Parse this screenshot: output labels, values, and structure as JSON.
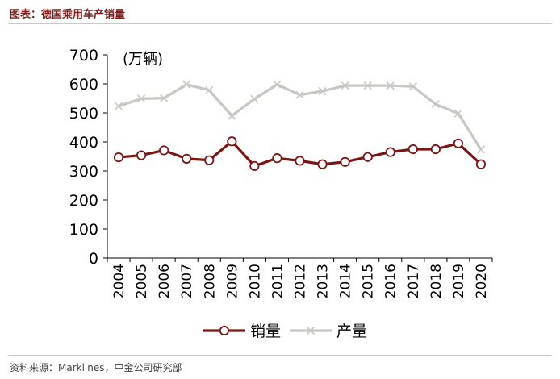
{
  "header": {
    "title": "图表：德国乘用车产销量"
  },
  "footer": {
    "source": "资料来源：Marklines，中金公司研究部"
  },
  "colors": {
    "sales": "#7b1515",
    "production": "#c6c8c3",
    "axis": "#000000"
  },
  "chart_data": {
    "type": "line",
    "title": "",
    "xlabel": "",
    "ylabel": "(万辆)",
    "ylim": [
      0,
      700
    ],
    "yticks": [
      0,
      100,
      200,
      300,
      400,
      500,
      600,
      700
    ],
    "categories": [
      "2004",
      "2005",
      "2006",
      "2007",
      "2008",
      "2009",
      "2010",
      "2011",
      "2012",
      "2013",
      "2014",
      "2015",
      "2016",
      "2017",
      "2018",
      "2019",
      "2020"
    ],
    "grid": false,
    "legend_position": "bottom",
    "series": [
      {
        "name": "销量",
        "marker": "circle",
        "values": [
          347,
          354,
          371,
          342,
          337,
          402,
          317,
          344,
          335,
          323,
          331,
          348,
          365,
          375,
          375,
          395,
          323
        ]
      },
      {
        "name": "产量",
        "marker": "x",
        "values": [
          523,
          549,
          551,
          598,
          578,
          490,
          548,
          598,
          562,
          575,
          594,
          594,
          594,
          591,
          530,
          498,
          374
        ]
      }
    ]
  }
}
